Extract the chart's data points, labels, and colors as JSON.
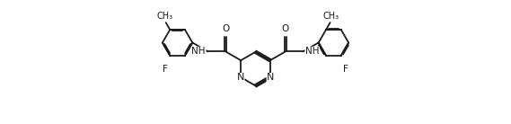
{
  "background": "#ffffff",
  "line_color": "#1a1a1a",
  "line_width": 1.3,
  "font_size": 7.5,
  "figsize": [
    5.69,
    1.38
  ],
  "dpi": 100,
  "xlim": [
    -1.0,
    11.0
  ],
  "ylim": [
    -1.0,
    3.5
  ]
}
